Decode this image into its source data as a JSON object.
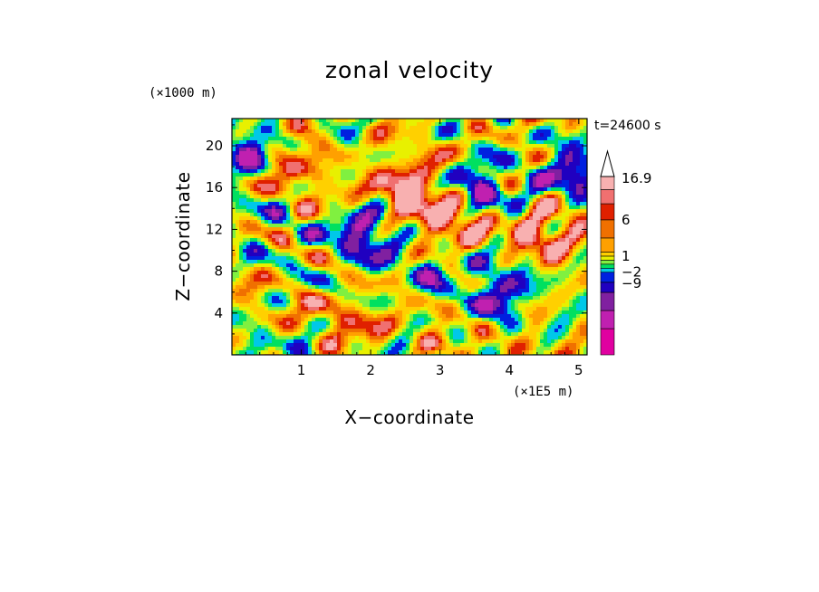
{
  "chart_data": {
    "type": "heatmap",
    "title": "zonal velocity",
    "xlabel": "X−coordinate",
    "ylabel": "Z−coordinate",
    "x_unit": "(×1E5 m)",
    "y_unit": "(×1000 m)",
    "time_label": "t=24600 s",
    "xlim": [
      0,
      5.12
    ],
    "ylim": [
      0,
      22.6
    ],
    "x_ticks": [
      "1",
      "2",
      "3",
      "4",
      "5"
    ],
    "x_tick_values": [
      1,
      2,
      3,
      4,
      5
    ],
    "y_ticks": [
      "4",
      "8",
      "12",
      "16",
      "20"
    ],
    "y_tick_values": [
      4,
      8,
      12,
      16,
      20
    ],
    "colorbar": {
      "labels": [
        "16.9",
        "6",
        "1",
        "−2",
        "−9"
      ],
      "label_values": [
        16.9,
        6,
        1,
        -2,
        -9
      ],
      "levels": [
        -9,
        -2,
        1,
        6,
        16.9
      ],
      "colors_bottom_to_top": [
        "#e000a0",
        "#c020b0",
        "#8020a0",
        "#2000c0",
        "#0020e0",
        "#00c8e8",
        "#00e060",
        "#80f040",
        "#e8f000",
        "#ffd000",
        "#ffa000",
        "#f07000",
        "#e02000",
        "#f07070",
        "#f8b0b0"
      ],
      "extend_top_color": "#ffffff"
    },
    "field_note_values": {
      "min_approx": -9,
      "max_approx": 16.9
    }
  }
}
